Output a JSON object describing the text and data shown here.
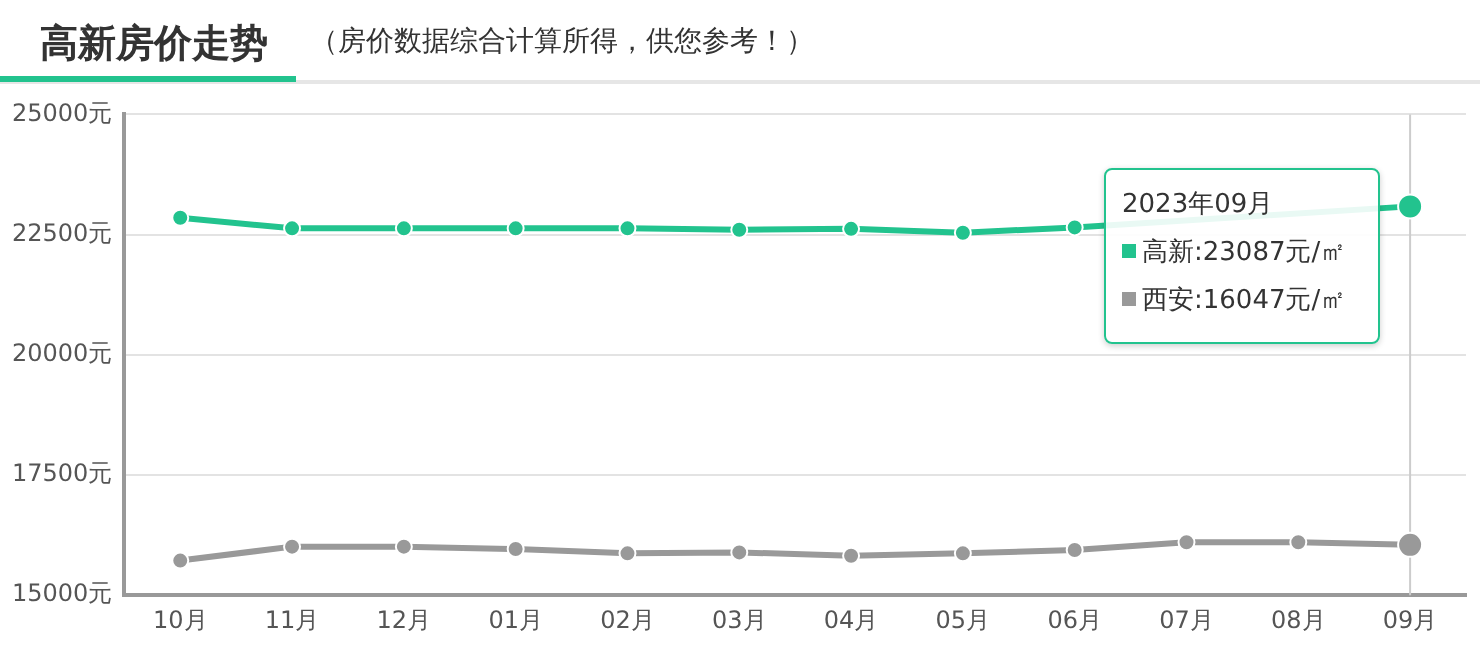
{
  "chart_data": {
    "type": "line",
    "title": "高新房价走势",
    "subtitle": "（房价数据综合计算所得，供您参考！）",
    "categories": [
      "10月",
      "11月",
      "12月",
      "01月",
      "02月",
      "03月",
      "04月",
      "05月",
      "06月",
      "07月",
      "08月",
      "09月"
    ],
    "series": [
      {
        "name": "高新",
        "color": "#22c38e",
        "values": [
          22850,
          22630,
          22630,
          22630,
          22630,
          22600,
          22620,
          22540,
          22650,
          null,
          null,
          23087
        ]
      },
      {
        "name": "西安",
        "color": "#999999",
        "values": [
          15720,
          16010,
          16010,
          15960,
          15870,
          15890,
          15820,
          15870,
          15940,
          16100,
          16100,
          16047
        ]
      }
    ],
    "ylim": [
      15000,
      25000
    ],
    "yticks": [
      {
        "value": 15000,
        "label": "15000元"
      },
      {
        "value": 17500,
        "label": "17500元"
      },
      {
        "value": 20000,
        "label": "20000元"
      },
      {
        "value": 22500,
        "label": "22500元"
      },
      {
        "value": 25000,
        "label": "25000元"
      }
    ],
    "annotations": [
      "2023年09月",
      ":23087元/㎡",
      ":16047元/㎡"
    ],
    "ref_lines": [
      {
        "axis": "x",
        "value": "09月",
        "color": "#cccccc"
      }
    ],
    "grid": "y",
    "marker": "circle",
    "line_style": "solid",
    "legend": "top right"
  }
}
